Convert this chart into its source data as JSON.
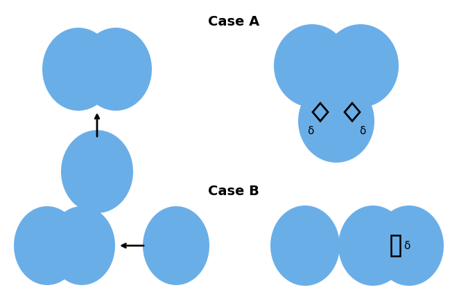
{
  "title_A": "Case A",
  "title_B": "Case B",
  "circle_color": "#6aaee8",
  "background_color": "#ffffff",
  "delta_label": "δ",
  "title_fontsize": 14,
  "delta_fontsize": 11,
  "fig_width": 6.75,
  "fig_height": 4.22
}
